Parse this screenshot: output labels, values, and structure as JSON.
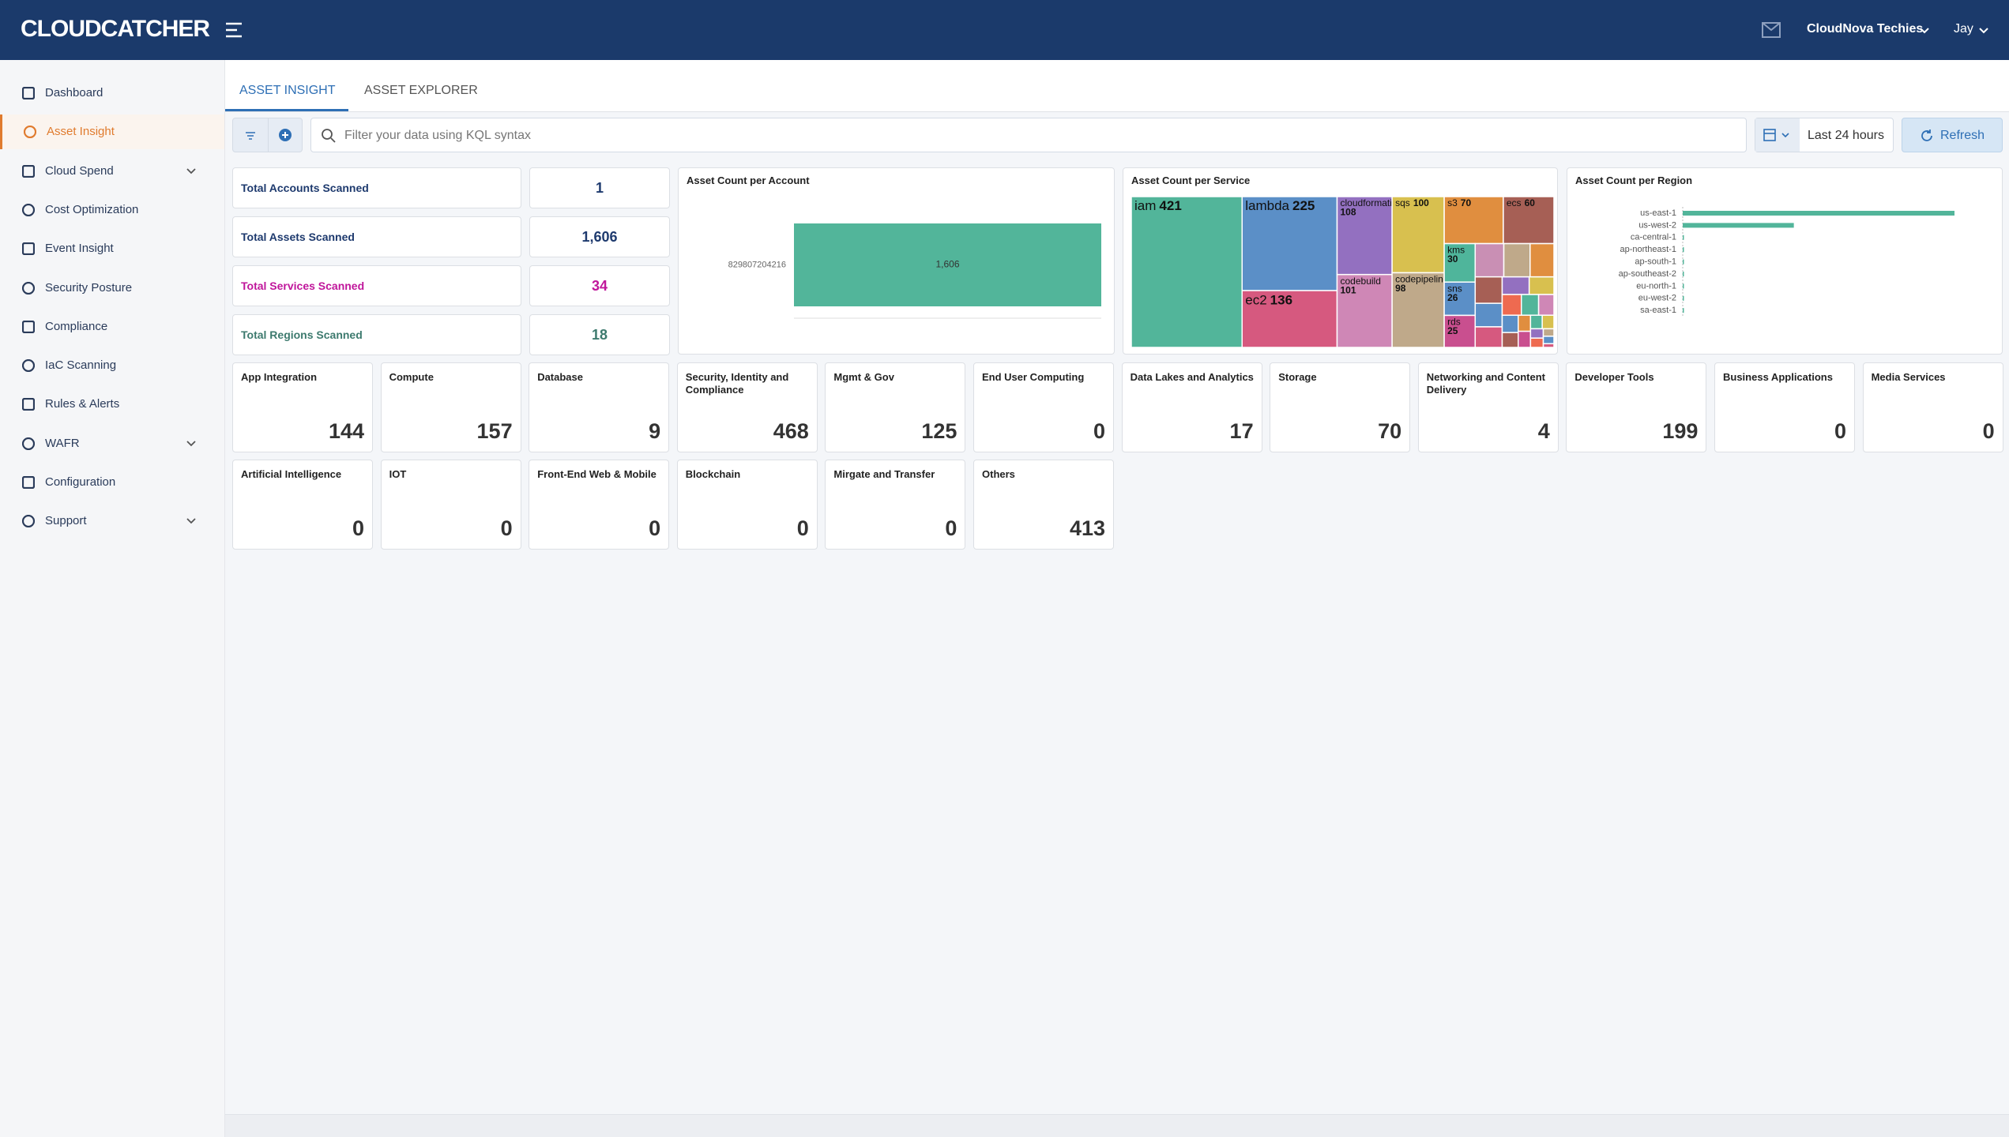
{
  "header": {
    "logo": "CLOUDCATCHER",
    "org": "CloudNova Techies",
    "user": "Jay"
  },
  "sidebar": [
    {
      "label": "Dashboard"
    },
    {
      "label": "Asset Insight",
      "active": true
    },
    {
      "label": "Cloud Spend",
      "chevron": true
    },
    {
      "label": "Cost Optimization"
    },
    {
      "label": "Event Insight"
    },
    {
      "label": "Security Posture"
    },
    {
      "label": "Compliance"
    },
    {
      "label": "IaC Scanning"
    },
    {
      "label": "Rules & Alerts"
    },
    {
      "label": "WAFR",
      "chevron": true
    },
    {
      "label": "Configuration"
    },
    {
      "label": "Support",
      "chevron": true
    }
  ],
  "tabs": [
    "ASSET INSIGHT",
    "ASSET EXPLORER"
  ],
  "filter": {
    "placeholder": "Filter your data using KQL syntax",
    "range": "Last 24 hours",
    "refresh": "Refresh"
  },
  "summary": [
    {
      "label": "Total Accounts Scanned",
      "value": "1",
      "color": "#1e3a6e"
    },
    {
      "label": "Total Assets Scanned",
      "value": "1,606",
      "color": "#1e3a6e"
    },
    {
      "label": "Total Services Scanned",
      "value": "34",
      "color": "#c0169b"
    },
    {
      "label": "Total Regions Scanned",
      "value": "18",
      "color": "#3d7a6e"
    }
  ],
  "categories": [
    {
      "label": "App Integration",
      "value": 144
    },
    {
      "label": "Compute",
      "value": 157
    },
    {
      "label": "Database",
      "value": 9
    },
    {
      "label": "Security, Identity and Compliance",
      "value": 468
    },
    {
      "label": "Mgmt & Gov",
      "value": 125
    },
    {
      "label": "End User Computing",
      "value": 0
    },
    {
      "label": "Data Lakes and Analytics",
      "value": 17
    },
    {
      "label": "Storage",
      "value": 70
    },
    {
      "label": "Networking and Content Delivery",
      "value": 4
    },
    {
      "label": "Developer Tools",
      "value": 199
    },
    {
      "label": "Business Applications",
      "value": 0
    },
    {
      "label": "Media Services",
      "value": 0
    },
    {
      "label": "Artificial Intelligence",
      "value": 0
    },
    {
      "label": "IOT",
      "value": 0
    },
    {
      "label": "Front-End Web & Mobile",
      "value": 0
    },
    {
      "label": "Blockchain",
      "value": 0
    },
    {
      "label": "Mirgate and Transfer",
      "value": 0
    },
    {
      "label": "Others",
      "value": 413
    }
  ],
  "chart_data": [
    {
      "type": "hbar",
      "title": "Asset Count per Account",
      "categories": [
        "829807204216"
      ],
      "values": [
        1606
      ],
      "value_labels": [
        "1,606"
      ],
      "color": "#52b59a"
    },
    {
      "type": "treemap",
      "title": "Asset Count per Service",
      "categories": [
        "iam",
        "lambda",
        "ec2",
        "cloudformation",
        "codebuild",
        "sqs",
        "codepipeline",
        "s3",
        "ecs",
        "kms",
        "sns",
        "rds",
        null,
        null,
        null,
        null,
        null,
        null,
        null,
        null,
        null,
        null,
        null,
        null,
        null,
        null,
        null,
        null,
        null,
        null,
        null,
        null,
        null,
        null
      ],
      "values": [
        421,
        225,
        136,
        108,
        101,
        100,
        98,
        70,
        60,
        30,
        26,
        25,
        24,
        22,
        20,
        18,
        16,
        14,
        12,
        11,
        10,
        9,
        8,
        7,
        6,
        5,
        5,
        4,
        4,
        3,
        3,
        2,
        2,
        1
      ],
      "colors": [
        "#52b59a",
        "#5b8fc7",
        "#d6597f",
        "#9370c0",
        "#cf87b6",
        "#d8c04f",
        "#bfa98a",
        "#e08e3f",
        "#a65f55",
        "#4fb59b",
        "#5b8fc7",
        "#c94f8f",
        "#c98fb4",
        "#bfa98a",
        "#e08e3f",
        "#a65f55",
        "#5b8fc7",
        "#d6597f",
        "#9370c0",
        "#d8c04f",
        "#ee6a50",
        "#52b59a",
        "#cf87b6",
        "#5b8fc7",
        "#a65f55",
        "#e08e3f",
        "#c94f8f",
        "#52b59a",
        "#d8c04f",
        "#9370c0",
        "#ee6a50",
        "#bfa98a",
        "#5b8fc7",
        "#d6597f"
      ]
    },
    {
      "type": "hbar-small",
      "title": "Asset Count per Region",
      "categories": [
        "us-east-1",
        "us-west-2",
        "ca-central-1",
        "ap-northeast-1",
        "ap-south-1",
        "ap-southeast-2",
        "eu-north-1",
        "eu-west-2",
        "sa-east-1"
      ],
      "values": [
        1130,
        462,
        2,
        2,
        2,
        2,
        2,
        2,
        2
      ],
      "color": "#52b59a"
    }
  ]
}
